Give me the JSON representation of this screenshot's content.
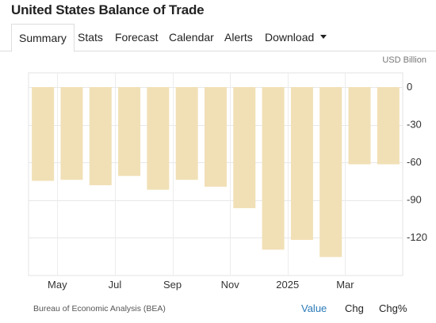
{
  "header": {
    "title": "United States Balance of Trade"
  },
  "tabs": [
    {
      "label": "Summary",
      "active": true
    },
    {
      "label": "Stats"
    },
    {
      "label": "Forecast"
    },
    {
      "label": "Calendar"
    },
    {
      "label": "Alerts"
    },
    {
      "label": "Download",
      "icon": "caret-down-icon"
    }
  ],
  "chart_data": {
    "type": "bar",
    "unit_label": "USD Billion",
    "categories": [
      "2024-04",
      "2024-05",
      "2024-06",
      "2024-07",
      "2024-08",
      "2024-09",
      "2024-10",
      "2024-11",
      "2024-12",
      "2025-01",
      "2025-02",
      "2025-03",
      "2025-04"
    ],
    "x_tick_labels": [
      {
        "category_index": 1,
        "label": "May"
      },
      {
        "category_index": 3,
        "label": "Jul"
      },
      {
        "category_index": 5,
        "label": "Sep"
      },
      {
        "category_index": 7,
        "label": "Nov"
      },
      {
        "category_index": 9,
        "label": "2025"
      },
      {
        "category_index": 11,
        "label": "Mar"
      }
    ],
    "values": [
      -74.8,
      -74.0,
      -78.3,
      -70.9,
      -81.9,
      -74.0,
      -79.5,
      -96.6,
      -129.7,
      -121.9,
      -135.6,
      -61.6,
      -61.6
    ],
    "ylim": [
      -150,
      0
    ],
    "yticks": [
      0,
      -30,
      -60,
      -90,
      -120
    ],
    "ytick_labels": [
      "0",
      "-30",
      "-60",
      "-90",
      "-120"
    ],
    "bar_color": "#f1e0b6",
    "grid": true,
    "source": "Bureau of Economic Analysis (BEA)",
    "view_options": [
      {
        "label": "Value",
        "selected": true
      },
      {
        "label": "Chg"
      },
      {
        "label": "Chg%"
      }
    ]
  }
}
